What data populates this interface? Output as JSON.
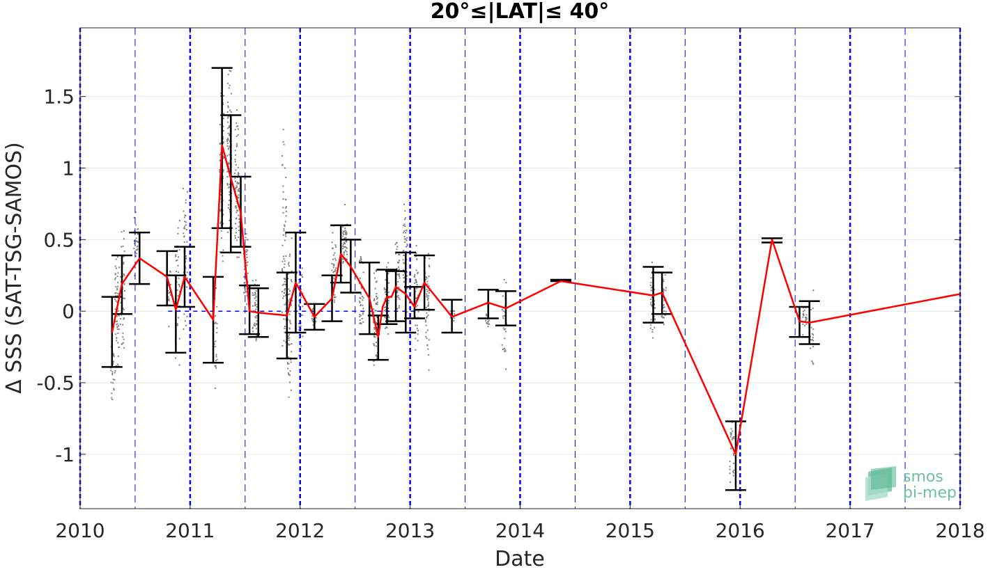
{
  "chart_data": {
    "type": "line",
    "title": "20°≤|LAT|≤ 40°",
    "xlabel": "Date",
    "ylabel": "Δ SSS (SAT-TSG-SAMOS)",
    "xlim": [
      2010.0,
      2018.0
    ],
    "ylim": [
      -1.38,
      1.98
    ],
    "x_ticks": [
      {
        "value": 2010,
        "label": "2010"
      },
      {
        "value": 2011,
        "label": "2011"
      },
      {
        "value": 2012,
        "label": "2012"
      },
      {
        "value": 2013,
        "label": "2013"
      },
      {
        "value": 2014,
        "label": "2014"
      },
      {
        "value": 2015,
        "label": "2015"
      },
      {
        "value": 2016,
        "label": "2016"
      },
      {
        "value": 2017,
        "label": "2017"
      },
      {
        "value": 2018,
        "label": "2018"
      }
    ],
    "y_ticks": [
      {
        "value": 1.5,
        "label": "1.5"
      },
      {
        "value": 1,
        "label": "1"
      },
      {
        "value": 0.5,
        "label": "0.5"
      },
      {
        "value": 0,
        "label": "0"
      },
      {
        "value": -0.5,
        "label": "-0.5"
      },
      {
        "value": -1,
        "label": "-1"
      }
    ],
    "grid": true,
    "year_lines": [
      2010,
      2011,
      2012,
      2013,
      2014,
      2015,
      2016,
      2017,
      2018
    ],
    "halfyear_lines": [
      2010.5,
      2011.5,
      2012.5,
      2013.5,
      2014.5,
      2015.5,
      2016.5,
      2017.5
    ],
    "zero_line": [
      2010.8,
      2013.05
    ],
    "scatter_clusters": [
      {
        "x": 2010.29,
        "ymin": -0.82,
        "ymax": 0.0,
        "count": 30
      },
      {
        "x": 2010.33,
        "ymin": -0.55,
        "ymax": 0.55,
        "count": 60
      },
      {
        "x": 2010.38,
        "ymin": -0.45,
        "ymax": 0.8,
        "count": 50
      },
      {
        "x": 2010.5,
        "ymin": 0.2,
        "ymax": 0.75,
        "count": 30
      },
      {
        "x": 2010.8,
        "ymin": -0.15,
        "ymax": 0.45,
        "count": 25
      },
      {
        "x": 2010.88,
        "ymin": -0.55,
        "ymax": 0.9,
        "count": 40
      },
      {
        "x": 2010.95,
        "ymin": -0.45,
        "ymax": 1.25,
        "count": 40
      },
      {
        "x": 2011.22,
        "ymin": -0.6,
        "ymax": 0.35,
        "count": 30
      },
      {
        "x": 2011.28,
        "ymin": 0.2,
        "ymax": 1.8,
        "count": 80
      },
      {
        "x": 2011.35,
        "ymin": 0.35,
        "ymax": 1.85,
        "count": 90
      },
      {
        "x": 2011.42,
        "ymin": 0.2,
        "ymax": 1.5,
        "count": 80
      },
      {
        "x": 2011.5,
        "ymin": -0.1,
        "ymax": 0.7,
        "count": 50
      },
      {
        "x": 2011.58,
        "ymin": -0.35,
        "ymax": 0.3,
        "count": 40
      },
      {
        "x": 2011.85,
        "ymin": -0.9,
        "ymax": 1.6,
        "count": 70
      },
      {
        "x": 2011.9,
        "ymin": -0.95,
        "ymax": 0.8,
        "count": 60
      },
      {
        "x": 2012.0,
        "ymin": -0.5,
        "ymax": 0.55,
        "count": 40
      },
      {
        "x": 2012.12,
        "ymin": -0.15,
        "ymax": 0.05,
        "count": 20
      },
      {
        "x": 2012.3,
        "ymin": -0.1,
        "ymax": 0.65,
        "count": 40
      },
      {
        "x": 2012.4,
        "ymin": 0.15,
        "ymax": 0.8,
        "count": 50
      },
      {
        "x": 2012.55,
        "ymin": -0.3,
        "ymax": 0.6,
        "count": 40
      },
      {
        "x": 2012.68,
        "ymin": -0.5,
        "ymax": 0.4,
        "count": 60
      },
      {
        "x": 2012.78,
        "ymin": -0.3,
        "ymax": 0.5,
        "count": 50
      },
      {
        "x": 2012.88,
        "ymin": -0.2,
        "ymax": 0.75,
        "count": 50
      },
      {
        "x": 2012.95,
        "ymin": -0.15,
        "ymax": 0.9,
        "count": 50
      },
      {
        "x": 2013.05,
        "ymin": -0.45,
        "ymax": 0.6,
        "count": 50
      },
      {
        "x": 2013.15,
        "ymin": -0.55,
        "ymax": 0.75,
        "count": 50
      },
      {
        "x": 2013.38,
        "ymin": -0.1,
        "ymax": 0.05,
        "count": 15
      },
      {
        "x": 2013.7,
        "ymin": -0.2,
        "ymax": 0.15,
        "count": 20
      },
      {
        "x": 2013.85,
        "ymin": -0.45,
        "ymax": 0.3,
        "count": 25
      },
      {
        "x": 2015.2,
        "ymin": -0.4,
        "ymax": 0.45,
        "count": 40
      },
      {
        "x": 2015.3,
        "ymin": -0.2,
        "ymax": 0.4,
        "count": 30
      },
      {
        "x": 2015.92,
        "ymin": -1.35,
        "ymax": -0.58,
        "count": 30
      },
      {
        "x": 2016.58,
        "ymin": -0.2,
        "ymax": 0.1,
        "count": 20
      },
      {
        "x": 2016.64,
        "ymin": -0.52,
        "ymax": 0.22,
        "count": 20
      }
    ],
    "error_bars": [
      {
        "x": 2010.29,
        "low": -0.39,
        "high": 0.1
      },
      {
        "x": 2010.38,
        "low": -0.02,
        "high": 0.39
      },
      {
        "x": 2010.54,
        "low": 0.19,
        "high": 0.55
      },
      {
        "x": 2010.79,
        "low": 0.04,
        "high": 0.42
      },
      {
        "x": 2010.87,
        "low": -0.29,
        "high": 0.25
      },
      {
        "x": 2010.95,
        "low": 0.03,
        "high": 0.45
      },
      {
        "x": 2011.21,
        "low": -0.36,
        "high": 0.24
      },
      {
        "x": 2011.29,
        "low": 0.58,
        "high": 1.7
      },
      {
        "x": 2011.37,
        "low": 0.41,
        "high": 1.37
      },
      {
        "x": 2011.46,
        "low": 0.45,
        "high": 0.94
      },
      {
        "x": 2011.54,
        "low": -0.16,
        "high": 0.18
      },
      {
        "x": 2011.62,
        "low": -0.18,
        "high": 0.16
      },
      {
        "x": 2011.88,
        "low": -0.33,
        "high": 0.27
      },
      {
        "x": 2011.96,
        "low": -0.15,
        "high": 0.55
      },
      {
        "x": 2012.13,
        "low": -0.13,
        "high": 0.05
      },
      {
        "x": 2012.29,
        "low": -0.07,
        "high": 0.25
      },
      {
        "x": 2012.37,
        "low": 0.2,
        "high": 0.6
      },
      {
        "x": 2012.46,
        "low": 0.13,
        "high": 0.5
      },
      {
        "x": 2012.63,
        "low": -0.16,
        "high": 0.34
      },
      {
        "x": 2012.71,
        "low": -0.34,
        "high": -0.03
      },
      {
        "x": 2012.79,
        "low": -0.09,
        "high": 0.29
      },
      {
        "x": 2012.87,
        "low": -0.07,
        "high": 0.28
      },
      {
        "x": 2012.96,
        "low": -0.15,
        "high": 0.41
      },
      {
        "x": 2013.04,
        "low": -0.05,
        "high": 0.17
      },
      {
        "x": 2013.13,
        "low": 0.01,
        "high": 0.39
      },
      {
        "x": 2013.38,
        "low": -0.15,
        "high": 0.08
      },
      {
        "x": 2013.71,
        "low": -0.05,
        "high": 0.15
      },
      {
        "x": 2013.87,
        "low": -0.1,
        "high": 0.14
      },
      {
        "x": 2014.37,
        "low": 0.21,
        "high": 0.22
      },
      {
        "x": 2015.21,
        "low": -0.08,
        "high": 0.31
      },
      {
        "x": 2015.29,
        "low": -0.02,
        "high": 0.27
      },
      {
        "x": 2015.96,
        "low": -1.25,
        "high": -0.77
      },
      {
        "x": 2016.29,
        "low": 0.48,
        "high": 0.51
      },
      {
        "x": 2016.54,
        "low": -0.18,
        "high": 0.03
      },
      {
        "x": 2016.63,
        "low": -0.23,
        "high": 0.07
      }
    ],
    "series": [
      {
        "color": "#ff0000",
        "x": [
          2010.29,
          2010.38,
          2010.54,
          2010.79,
          2010.87,
          2010.95,
          2011.21,
          2011.29,
          2011.37,
          2011.46,
          2011.54,
          2011.62,
          2011.88,
          2011.96,
          2012.13,
          2012.29,
          2012.37,
          2012.46,
          2012.63,
          2012.71,
          2012.75,
          2012.79,
          2012.83,
          2012.87,
          2012.96,
          2013.04,
          2013.13,
          2013.38,
          2013.71,
          2013.87,
          2014.37,
          2015.21,
          2015.29,
          2015.96,
          2016.29,
          2016.54,
          2016.63,
          2018.0
        ],
        "y": [
          -0.15,
          0.19,
          0.37,
          0.24,
          0.01,
          0.24,
          -0.06,
          1.16,
          0.93,
          0.69,
          0.0,
          -0.01,
          -0.03,
          0.2,
          -0.04,
          0.09,
          0.4,
          0.31,
          0.09,
          -0.18,
          0.03,
          0.1,
          0.1,
          0.17,
          0.12,
          0.03,
          0.2,
          -0.04,
          0.06,
          0.02,
          0.21,
          0.11,
          0.13,
          -1.0,
          0.5,
          -0.07,
          -0.08,
          0.12
        ]
      }
    ],
    "colors": {
      "red_line": "#ff0000",
      "error_bar": "#000000",
      "scatter": "#808080",
      "year_lines": "#0000ee",
      "grid": "#e6e6e6"
    }
  },
  "logo": {
    "line1": "smos",
    "line2": "pi-mep"
  }
}
